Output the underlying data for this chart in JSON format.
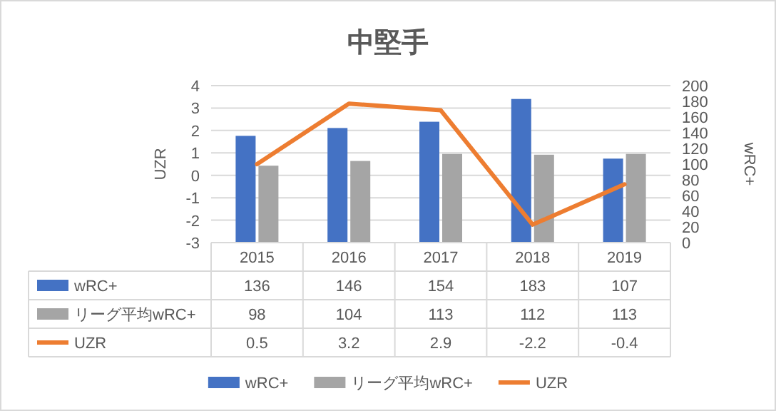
{
  "chart_data": {
    "type": "bar",
    "title": "中堅手",
    "ylabel": "UZR",
    "y2label": "wRC+",
    "categories": [
      "2015",
      "2016",
      "2017",
      "2018",
      "2019"
    ],
    "series": [
      {
        "name": "wRC+",
        "axis": "y2",
        "color": "#4472c4",
        "values": [
          136,
          146,
          154,
          183,
          107
        ]
      },
      {
        "name": "リーグ平均wRC+",
        "axis": "y2",
        "color": "#a5a5a5",
        "values": [
          98,
          104,
          113,
          112,
          113
        ]
      },
      {
        "name": "UZR",
        "type": "line",
        "color": "#ed7d31",
        "values": [
          0.5,
          3.2,
          2.9,
          -2.2,
          -0.4
        ]
      }
    ],
    "ylim": [
      -3,
      4
    ],
    "yticks": [
      -3,
      -2,
      -1,
      0,
      1,
      2,
      3,
      4
    ],
    "y2lim": [
      0,
      200
    ],
    "y2ticks": [
      0,
      20,
      40,
      60,
      80,
      100,
      120,
      140,
      160,
      180,
      200
    ],
    "grid": "y",
    "legend": "bottom",
    "data_labels": true
  }
}
